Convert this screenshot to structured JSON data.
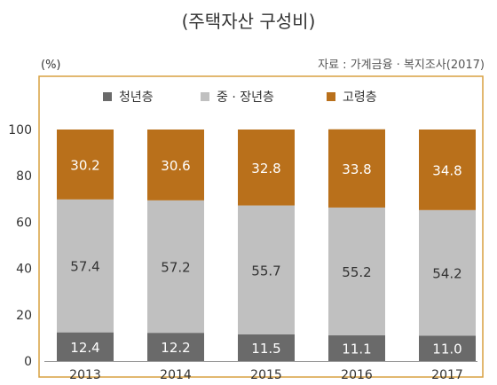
{
  "title": "(주택자산 구성비)",
  "source": "자료 : 가계금융 · 복지조사(2017)",
  "unit": "(%)",
  "colors": {
    "youth": "#6a6a6a",
    "middle": "#c0c0c0",
    "senior": "#b9701b",
    "frame": "#d8a040"
  },
  "chart_data": {
    "type": "bar",
    "stacked": true,
    "categories": [
      "2013",
      "2014",
      "2015",
      "2016",
      "2017"
    ],
    "series": [
      {
        "name": "청년층",
        "values": [
          12.4,
          12.2,
          11.5,
          11.1,
          11.0
        ],
        "color": "#6a6a6a"
      },
      {
        "name": "중 · 장년층",
        "values": [
          57.4,
          57.2,
          55.7,
          55.2,
          54.2
        ],
        "color": "#c0c0c0"
      },
      {
        "name": "고령층",
        "values": [
          30.2,
          30.6,
          32.8,
          33.8,
          34.8
        ],
        "color": "#b9701b"
      }
    ],
    "ylim": [
      0,
      100
    ],
    "yticks": [
      "0",
      "20",
      "40",
      "60",
      "80",
      "100"
    ],
    "legend": "top"
  }
}
